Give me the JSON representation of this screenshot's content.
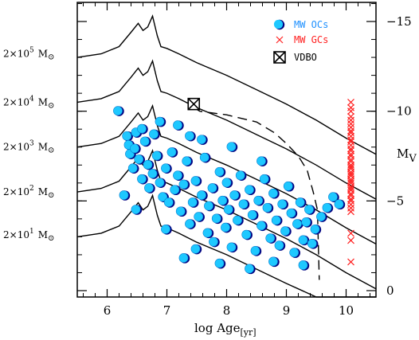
{
  "chart_data": {
    "type": "scatter",
    "xlabel": "log Age",
    "xlabel_sub": "[yr]",
    "ylabel": "M",
    "ylabel_sub": "V",
    "xlim": [
      5.5,
      10.5
    ],
    "ylim_right": [
      0,
      -16
    ],
    "x_ticks": [
      6,
      7,
      8,
      9,
      10
    ],
    "y_ticks_right": [
      -15,
      -10,
      -5,
      0
    ],
    "legend_position": "top-right",
    "legend": [
      {
        "name": "MW OCs",
        "color": "#1e90ff",
        "marker": "circle"
      },
      {
        "name": "MW GCs",
        "color": "#ff2020",
        "marker": "cross"
      },
      {
        "name": "VDBO",
        "color": "#000000",
        "marker": "boxed-cross"
      }
    ],
    "mass_labels": [
      {
        "base": "2×10",
        "exp": "5",
        "unit": "M",
        "mv": -13.2
      },
      {
        "base": "2×10",
        "exp": "4",
        "unit": "M",
        "mv": -10.5
      },
      {
        "base": "2×10",
        "exp": "3",
        "unit": "M",
        "mv": -8.0
      },
      {
        "base": "2×10",
        "exp": "2",
        "unit": "M",
        "mv": -5.5
      },
      {
        "base": "2×10",
        "exp": "1",
        "unit": "M",
        "mv": -3.1
      }
    ],
    "tracks": [
      {
        "offset": 0
      },
      {
        "offset": 2.5
      },
      {
        "offset": 5.0
      },
      {
        "offset": 7.5
      },
      {
        "offset": 10.0
      }
    ],
    "dashed_track": [
      [
        7.45,
        -10.2
      ],
      [
        7.55,
        -10.0
      ],
      [
        8.0,
        -9.8
      ],
      [
        8.5,
        -9.4
      ],
      [
        8.8,
        -8.8
      ],
      [
        9.0,
        -8.2
      ],
      [
        9.2,
        -7.5
      ],
      [
        9.35,
        -6.7
      ],
      [
        9.45,
        -5.5
      ],
      [
        9.52,
        -4.5
      ],
      [
        9.55,
        -0.6
      ]
    ],
    "vdbo": {
      "x": 7.45,
      "y": -10.4
    },
    "gc_points": {
      "x": 10.08,
      "y": [
        -10.5,
        -10.2,
        -10.0,
        -9.7,
        -9.5,
        -9.3,
        -9.1,
        -8.9,
        -8.8,
        -8.6,
        -8.4,
        -8.3,
        -8.1,
        -7.9,
        -7.8,
        -7.6,
        -7.5,
        -7.3,
        -7.2,
        -7.0,
        -6.9,
        -6.8,
        -6.6,
        -6.5,
        -6.4,
        -6.2,
        -6.1,
        -6.0,
        -5.8,
        -5.7,
        -5.6,
        -5.4,
        -5.3,
        -5.1,
        -5.0,
        -4.8,
        -4.6,
        -4.4,
        -3.2,
        -2.8,
        -1.6
      ]
    },
    "oc_points": [
      [
        6.2,
        -10.0
      ],
      [
        6.35,
        -8.6
      ],
      [
        6.38,
        -8.1
      ],
      [
        6.4,
        -7.6
      ],
      [
        6.45,
        -6.8
      ],
      [
        6.48,
        -7.9
      ],
      [
        6.5,
        -8.8
      ],
      [
        6.55,
        -7.3
      ],
      [
        6.6,
        -6.2
      ],
      [
        6.65,
        -8.3
      ],
      [
        6.7,
        -7.0
      ],
      [
        6.72,
        -5.7
      ],
      [
        6.78,
        -6.5
      ],
      [
        6.8,
        -8.7
      ],
      [
        6.85,
        -7.5
      ],
      [
        6.9,
        -6.0
      ],
      [
        6.95,
        -5.2
      ],
      [
        7.0,
        -6.8
      ],
      [
        7.05,
        -4.9
      ],
      [
        7.1,
        -7.7
      ],
      [
        7.15,
        -5.6
      ],
      [
        7.2,
        -6.4
      ],
      [
        7.25,
        -4.4
      ],
      [
        7.3,
        -5.9
      ],
      [
        7.35,
        -7.2
      ],
      [
        7.4,
        -3.7
      ],
      [
        7.45,
        -4.9
      ],
      [
        7.5,
        -6.1
      ],
      [
        7.55,
        -4.1
      ],
      [
        7.6,
        -5.3
      ],
      [
        7.65,
        -7.4
      ],
      [
        7.7,
        -3.2
      ],
      [
        7.72,
        -4.7
      ],
      [
        7.78,
        -5.7
      ],
      [
        7.8,
        -2.7
      ],
      [
        7.85,
        -4.0
      ],
      [
        7.9,
        -6.6
      ],
      [
        7.95,
        -5.0
      ],
      [
        8.0,
        -3.5
      ],
      [
        8.02,
        -6.0
      ],
      [
        8.05,
        -4.5
      ],
      [
        8.1,
        -2.4
      ],
      [
        8.15,
        -5.3
      ],
      [
        8.2,
        -3.9
      ],
      [
        8.25,
        -6.4
      ],
      [
        8.3,
        -4.8
      ],
      [
        8.35,
        -3.1
      ],
      [
        8.4,
        -5.6
      ],
      [
        8.45,
        -4.2
      ],
      [
        8.5,
        -2.2
      ],
      [
        8.55,
        -5.0
      ],
      [
        8.6,
        -3.6
      ],
      [
        8.65,
        -6.2
      ],
      [
        8.7,
        -4.6
      ],
      [
        8.75,
        -2.9
      ],
      [
        8.8,
        -5.4
      ],
      [
        8.85,
        -3.9
      ],
      [
        8.9,
        -2.5
      ],
      [
        8.95,
        -4.8
      ],
      [
        9.0,
        -3.3
      ],
      [
        9.05,
        -5.8
      ],
      [
        9.1,
        -4.3
      ],
      [
        9.15,
        -2.1
      ],
      [
        9.2,
        -3.7
      ],
      [
        9.25,
        -4.9
      ],
      [
        9.3,
        -2.8
      ],
      [
        9.35,
        -3.8
      ],
      [
        9.4,
        -4.5
      ],
      [
        9.45,
        -2.6
      ],
      [
        9.5,
        -3.4
      ],
      [
        9.6,
        -4.1
      ],
      [
        9.7,
        -4.6
      ],
      [
        9.8,
        -5.2
      ],
      [
        9.9,
        -4.8
      ],
      [
        6.6,
        -9.0
      ],
      [
        7.2,
        -9.2
      ],
      [
        7.6,
        -8.4
      ],
      [
        8.1,
        -8.0
      ],
      [
        8.6,
        -7.2
      ],
      [
        7.3,
        -1.8
      ],
      [
        7.9,
        -1.5
      ],
      [
        8.4,
        -1.2
      ],
      [
        6.3,
        -5.3
      ],
      [
        6.9,
        -9.4
      ],
      [
        7.4,
        -8.6
      ],
      [
        8.8,
        -1.6
      ],
      [
        9.3,
        -1.4
      ],
      [
        7.0,
        -3.4
      ],
      [
        6.5,
        -4.5
      ],
      [
        7.5,
        -2.3
      ]
    ]
  }
}
